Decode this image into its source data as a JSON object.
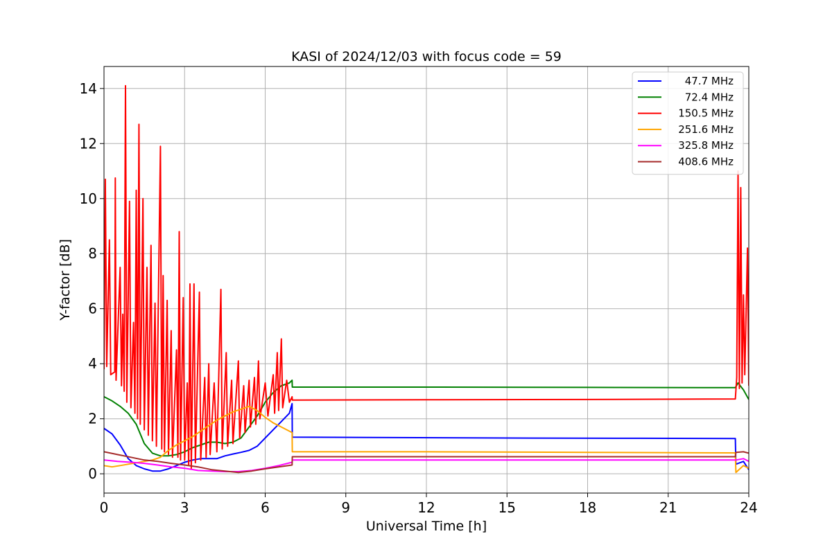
{
  "chart_data": {
    "type": "line",
    "title": "KASI of 2024/12/03 with focus code = 59",
    "xlabel": "Universal Time [h]",
    "ylabel": "Y-factor [dB]",
    "xlim": [
      0,
      24
    ],
    "ylim": [
      -0.7,
      14.8
    ],
    "xticks": [
      0,
      3,
      6,
      9,
      12,
      15,
      18,
      21,
      24
    ],
    "yticks": [
      0,
      2,
      4,
      6,
      8,
      10,
      12,
      14
    ],
    "grid": true,
    "legend_position": "top-right",
    "series": [
      {
        "name": "47.7 MHz",
        "color": "#0000ff",
        "points": [
          [
            0,
            1.65
          ],
          [
            0.3,
            1.45
          ],
          [
            0.6,
            1.05
          ],
          [
            0.9,
            0.55
          ],
          [
            1.2,
            0.3
          ],
          [
            1.5,
            0.18
          ],
          [
            1.8,
            0.1
          ],
          [
            2.1,
            0.1
          ],
          [
            2.4,
            0.18
          ],
          [
            2.7,
            0.3
          ],
          [
            3.0,
            0.42
          ],
          [
            3.3,
            0.5
          ],
          [
            3.6,
            0.55
          ],
          [
            3.9,
            0.55
          ],
          [
            4.2,
            0.55
          ],
          [
            4.5,
            0.65
          ],
          [
            4.8,
            0.72
          ],
          [
            5.1,
            0.78
          ],
          [
            5.4,
            0.85
          ],
          [
            5.7,
            1.0
          ],
          [
            6.0,
            1.3
          ],
          [
            6.3,
            1.6
          ],
          [
            6.6,
            1.9
          ],
          [
            6.9,
            2.2
          ],
          [
            7.0,
            2.55
          ],
          [
            7.01,
            1.33
          ],
          [
            10,
            1.32
          ],
          [
            15,
            1.3
          ],
          [
            20,
            1.29
          ],
          [
            23.5,
            1.28
          ],
          [
            23.52,
            0.35
          ],
          [
            23.8,
            0.45
          ],
          [
            24,
            0.15
          ]
        ]
      },
      {
        "name": "72.4 MHz",
        "color": "#008000",
        "points": [
          [
            0,
            2.8
          ],
          [
            0.3,
            2.65
          ],
          [
            0.6,
            2.45
          ],
          [
            0.9,
            2.2
          ],
          [
            1.2,
            1.8
          ],
          [
            1.5,
            1.1
          ],
          [
            1.8,
            0.75
          ],
          [
            2.1,
            0.65
          ],
          [
            2.4,
            0.65
          ],
          [
            2.7,
            0.7
          ],
          [
            3.0,
            0.8
          ],
          [
            3.3,
            0.95
          ],
          [
            3.6,
            1.05
          ],
          [
            3.9,
            1.15
          ],
          [
            4.2,
            1.15
          ],
          [
            4.5,
            1.1
          ],
          [
            4.8,
            1.15
          ],
          [
            5.1,
            1.3
          ],
          [
            5.4,
            1.7
          ],
          [
            5.7,
            2.1
          ],
          [
            6.0,
            2.6
          ],
          [
            6.3,
            2.95
          ],
          [
            6.6,
            3.2
          ],
          [
            6.9,
            3.3
          ],
          [
            7.0,
            3.4
          ],
          [
            7.01,
            3.15
          ],
          [
            12,
            3.15
          ],
          [
            18,
            3.14
          ],
          [
            23.5,
            3.13
          ],
          [
            23.6,
            3.3
          ],
          [
            23.8,
            3.05
          ],
          [
            24,
            2.7
          ]
        ]
      },
      {
        "name": "150.5 MHz",
        "color": "#ff0000",
        "points": [
          [
            0,
            3.8
          ],
          [
            0.05,
            10.7
          ],
          [
            0.1,
            3.9
          ],
          [
            0.2,
            8.5
          ],
          [
            0.25,
            3.6
          ],
          [
            0.4,
            3.7
          ],
          [
            0.42,
            10.75
          ],
          [
            0.45,
            3.4
          ],
          [
            0.6,
            7.5
          ],
          [
            0.65,
            3.2
          ],
          [
            0.7,
            5.8
          ],
          [
            0.75,
            3.0
          ],
          [
            0.8,
            14.1
          ],
          [
            0.85,
            2.6
          ],
          [
            0.95,
            9.9
          ],
          [
            1.0,
            2.4
          ],
          [
            1.1,
            5.5
          ],
          [
            1.15,
            2.2
          ],
          [
            1.2,
            10.3
          ],
          [
            1.25,
            2.0
          ],
          [
            1.3,
            12.7
          ],
          [
            1.35,
            1.8
          ],
          [
            1.45,
            10.0
          ],
          [
            1.5,
            1.6
          ],
          [
            1.6,
            7.5
          ],
          [
            1.65,
            1.4
          ],
          [
            1.75,
            8.3
          ],
          [
            1.8,
            1.2
          ],
          [
            1.9,
            6.2
          ],
          [
            1.95,
            1.0
          ],
          [
            2.1,
            11.9
          ],
          [
            2.15,
            0.9
          ],
          [
            2.2,
            7.2
          ],
          [
            2.25,
            0.8
          ],
          [
            2.35,
            6.3
          ],
          [
            2.4,
            0.7
          ],
          [
            2.5,
            5.2
          ],
          [
            2.55,
            0.6
          ],
          [
            2.7,
            4.5
          ],
          [
            2.75,
            0.6
          ],
          [
            2.8,
            8.8
          ],
          [
            2.85,
            0.5
          ],
          [
            2.95,
            6.4
          ],
          [
            3.0,
            0.5
          ],
          [
            3.1,
            3.3
          ],
          [
            3.15,
            0.3
          ],
          [
            3.2,
            6.9
          ],
          [
            3.25,
            0.2
          ],
          [
            3.35,
            6.9
          ],
          [
            3.4,
            0.4
          ],
          [
            3.55,
            6.6
          ],
          [
            3.6,
            0.5
          ],
          [
            3.75,
            3.5
          ],
          [
            3.8,
            0.6
          ],
          [
            3.9,
            4.0
          ],
          [
            3.95,
            0.7
          ],
          [
            4.1,
            3.3
          ],
          [
            4.2,
            0.8
          ],
          [
            4.35,
            6.7
          ],
          [
            4.4,
            0.9
          ],
          [
            4.55,
            4.4
          ],
          [
            4.6,
            1.0
          ],
          [
            4.75,
            3.4
          ],
          [
            4.8,
            1.1
          ],
          [
            5.0,
            4.1
          ],
          [
            5.05,
            1.3
          ],
          [
            5.2,
            3.2
          ],
          [
            5.25,
            1.5
          ],
          [
            5.4,
            3.4
          ],
          [
            5.45,
            1.7
          ],
          [
            5.6,
            3.5
          ],
          [
            5.65,
            1.8
          ],
          [
            5.75,
            4.1
          ],
          [
            5.8,
            2.0
          ],
          [
            6.0,
            3.3
          ],
          [
            6.1,
            2.1
          ],
          [
            6.3,
            3.6
          ],
          [
            6.35,
            2.2
          ],
          [
            6.45,
            4.4
          ],
          [
            6.5,
            2.3
          ],
          [
            6.6,
            4.9
          ],
          [
            6.65,
            2.4
          ],
          [
            6.8,
            3.4
          ],
          [
            6.9,
            2.6
          ],
          [
            7.0,
            2.8
          ],
          [
            7.01,
            2.68
          ],
          [
            12,
            2.69
          ],
          [
            18,
            2.7
          ],
          [
            23.5,
            2.72
          ],
          [
            23.55,
            3.5
          ],
          [
            23.6,
            11.0
          ],
          [
            23.65,
            3.1
          ],
          [
            23.7,
            10.4
          ],
          [
            23.75,
            3.3
          ],
          [
            23.8,
            6.5
          ],
          [
            23.85,
            3.6
          ],
          [
            23.95,
            8.2
          ],
          [
            24,
            3.2
          ]
        ]
      },
      {
        "name": "251.6 MHz",
        "color": "#ffa500",
        "points": [
          [
            0,
            0.3
          ],
          [
            0.3,
            0.25
          ],
          [
            0.6,
            0.3
          ],
          [
            0.9,
            0.35
          ],
          [
            1.2,
            0.4
          ],
          [
            1.5,
            0.45
          ],
          [
            1.8,
            0.5
          ],
          [
            2.1,
            0.6
          ],
          [
            2.4,
            0.85
          ],
          [
            2.7,
            1.05
          ],
          [
            3.0,
            1.2
          ],
          [
            3.3,
            1.35
          ],
          [
            3.6,
            1.55
          ],
          [
            3.9,
            1.75
          ],
          [
            4.2,
            1.95
          ],
          [
            4.5,
            2.1
          ],
          [
            4.8,
            2.25
          ],
          [
            5.1,
            2.35
          ],
          [
            5.4,
            2.45
          ],
          [
            5.7,
            2.3
          ],
          [
            6.0,
            2.05
          ],
          [
            6.3,
            1.85
          ],
          [
            6.6,
            1.7
          ],
          [
            6.9,
            1.55
          ],
          [
            7.0,
            1.5
          ],
          [
            7.01,
            0.8
          ],
          [
            12,
            0.8
          ],
          [
            18,
            0.78
          ],
          [
            23.5,
            0.76
          ],
          [
            23.52,
            0.05
          ],
          [
            23.8,
            0.3
          ],
          [
            24,
            0.2
          ]
        ]
      },
      {
        "name": "325.8 MHz",
        "color": "#ff00ff",
        "points": [
          [
            0,
            0.5
          ],
          [
            0.5,
            0.45
          ],
          [
            1.0,
            0.42
          ],
          [
            1.5,
            0.38
          ],
          [
            2.0,
            0.32
          ],
          [
            2.5,
            0.25
          ],
          [
            3.0,
            0.2
          ],
          [
            3.5,
            0.12
          ],
          [
            4.0,
            0.1
          ],
          [
            4.5,
            0.08
          ],
          [
            5.0,
            0.08
          ],
          [
            5.5,
            0.12
          ],
          [
            6.0,
            0.2
          ],
          [
            6.5,
            0.3
          ],
          [
            7.0,
            0.42
          ],
          [
            7.01,
            0.5
          ],
          [
            12,
            0.5
          ],
          [
            18,
            0.5
          ],
          [
            23.5,
            0.5
          ],
          [
            23.52,
            0.5
          ],
          [
            23.8,
            0.55
          ],
          [
            24,
            0.45
          ]
        ]
      },
      {
        "name": "408.6 MHz",
        "color": "#a52a2a",
        "points": [
          [
            0,
            0.8
          ],
          [
            0.5,
            0.7
          ],
          [
            1.0,
            0.6
          ],
          [
            1.5,
            0.5
          ],
          [
            2.0,
            0.45
          ],
          [
            2.5,
            0.38
          ],
          [
            3.0,
            0.32
          ],
          [
            3.5,
            0.25
          ],
          [
            4.0,
            0.15
          ],
          [
            4.5,
            0.1
          ],
          [
            5.0,
            0.05
          ],
          [
            5.5,
            0.1
          ],
          [
            6.0,
            0.18
          ],
          [
            6.5,
            0.25
          ],
          [
            7.0,
            0.32
          ],
          [
            7.01,
            0.62
          ],
          [
            12,
            0.62
          ],
          [
            18,
            0.62
          ],
          [
            23.5,
            0.62
          ],
          [
            23.52,
            0.78
          ],
          [
            23.8,
            0.8
          ],
          [
            24,
            0.75
          ]
        ]
      }
    ]
  }
}
